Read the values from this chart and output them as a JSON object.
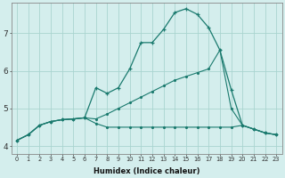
{
  "xlabel": "Humidex (Indice chaleur)",
  "ylabel": "",
  "bg_color": "#d4eeed",
  "grid_color": "#aad4d0",
  "line_color": "#1a7a6e",
  "xlim": [
    -0.5,
    23.5
  ],
  "ylim": [
    3.8,
    7.8
  ],
  "xticks": [
    0,
    1,
    2,
    3,
    4,
    5,
    6,
    7,
    8,
    9,
    10,
    11,
    12,
    13,
    14,
    15,
    16,
    17,
    18,
    19,
    20,
    21,
    22,
    23
  ],
  "yticks": [
    4,
    5,
    6,
    7
  ],
  "series1_x": [
    0,
    1,
    2,
    3,
    4,
    5,
    6,
    7,
    8,
    9,
    10,
    11,
    12,
    13,
    14,
    15,
    16,
    17,
    18,
    19,
    20,
    21,
    22,
    23
  ],
  "series1_y": [
    4.15,
    4.3,
    4.55,
    4.65,
    4.7,
    4.72,
    4.75,
    5.55,
    5.4,
    5.55,
    6.05,
    6.75,
    6.75,
    7.1,
    7.55,
    7.65,
    7.5,
    7.15,
    6.55,
    5.5,
    4.55,
    4.45,
    4.35,
    4.3
  ],
  "series2_x": [
    0,
    1,
    2,
    3,
    4,
    5,
    6,
    7,
    8,
    9,
    10,
    11,
    12,
    13,
    14,
    15,
    16,
    17,
    18,
    19,
    20,
    21,
    22,
    23
  ],
  "series2_y": [
    4.15,
    4.3,
    4.55,
    4.65,
    4.7,
    4.72,
    4.75,
    4.72,
    4.85,
    5.0,
    5.15,
    5.3,
    5.45,
    5.6,
    5.75,
    5.85,
    5.95,
    6.05,
    6.55,
    5.0,
    4.55,
    4.45,
    4.35,
    4.3
  ],
  "series3_x": [
    0,
    1,
    2,
    3,
    4,
    5,
    6,
    7,
    8,
    9,
    10,
    11,
    12,
    13,
    14,
    15,
    16,
    17,
    18,
    19,
    20,
    21,
    22,
    23
  ],
  "series3_y": [
    4.15,
    4.3,
    4.55,
    4.65,
    4.7,
    4.72,
    4.75,
    4.6,
    4.5,
    4.5,
    4.5,
    4.5,
    4.5,
    4.5,
    4.5,
    4.5,
    4.5,
    4.5,
    4.5,
    4.5,
    4.55,
    4.45,
    4.35,
    4.3
  ]
}
